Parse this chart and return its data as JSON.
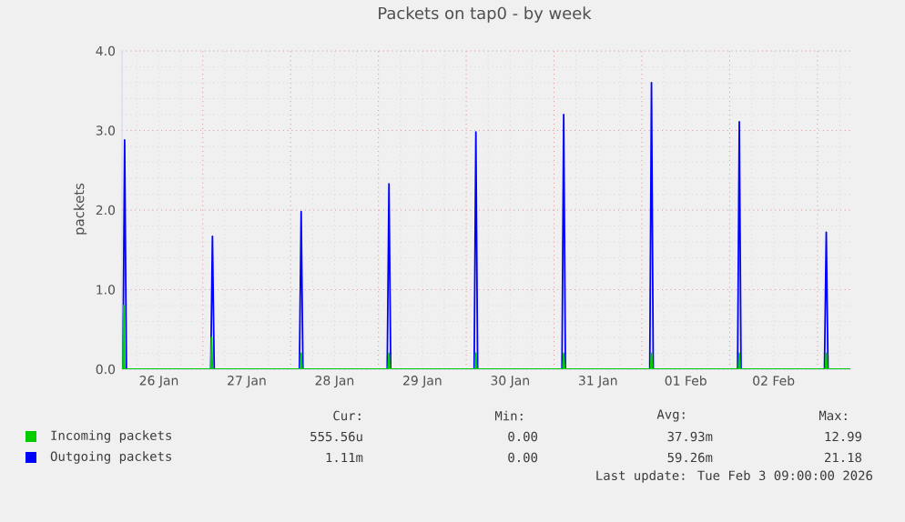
{
  "chart_data": {
    "type": "line",
    "title": "Packets on tap0 - by week",
    "ylabel": "packets",
    "xlim": [
      "2026-01-26T01:55",
      "2026-02-03T09:00"
    ],
    "ylim": [
      0,
      4
    ],
    "xticks": [
      {
        "value": "2026-01-26T12:00",
        "label": "26 Jan"
      },
      {
        "value": "2026-01-27T12:00",
        "label": "27 Jan"
      },
      {
        "value": "2026-01-28T12:00",
        "label": "28 Jan"
      },
      {
        "value": "2026-01-29T12:00",
        "label": "29 Jan"
      },
      {
        "value": "2026-01-30T12:00",
        "label": "30 Jan"
      },
      {
        "value": "2026-01-31T12:00",
        "label": "31 Jan"
      },
      {
        "value": "2026-02-01T12:00",
        "label": "01 Feb"
      },
      {
        "value": "2026-02-02T12:00",
        "label": "02 Feb"
      }
    ],
    "yticks": [
      {
        "value": 0,
        "label": "0.0"
      },
      {
        "value": 1,
        "label": "1.0"
      },
      {
        "value": 2,
        "label": "2.0"
      },
      {
        "value": 3,
        "label": "3.0"
      },
      {
        "value": 4,
        "label": "4.0"
      }
    ],
    "grid": true,
    "legend": "bottom",
    "marker": "none",
    "line_style": "solid",
    "series": [
      {
        "name": "Incoming packets",
        "color": "#00cc00",
        "x": [
          "2026-01-26T01:55",
          "2026-01-26T02:10",
          "2026-01-26T02:24",
          "2026-01-26T02:38",
          "2026-01-27T02:10",
          "2026-01-27T02:24",
          "2026-01-27T02:38",
          "2026-01-28T02:38",
          "2026-01-28T02:53",
          "2026-01-28T03:07",
          "2026-01-29T02:38",
          "2026-01-29T02:53",
          "2026-01-29T03:07",
          "2026-01-30T02:24",
          "2026-01-30T02:38",
          "2026-01-30T02:53",
          "2026-01-31T02:24",
          "2026-01-31T02:38",
          "2026-01-31T02:53",
          "2026-02-01T02:24",
          "2026-02-01T02:38",
          "2026-02-01T02:53",
          "2026-02-02T02:24",
          "2026-02-02T02:38",
          "2026-02-02T02:53",
          "2026-02-03T02:10",
          "2026-02-03T02:24",
          "2026-02-03T02:38",
          "2026-02-03T09:00"
        ],
        "values": [
          0,
          0,
          0.8,
          0,
          0,
          0.4,
          0,
          0,
          0.2,
          0,
          0,
          0.2,
          0,
          0,
          0.2,
          0,
          0,
          0.2,
          0,
          0,
          0.2,
          0,
          0,
          0.2,
          0,
          0,
          0.2,
          0,
          0
        ]
      },
      {
        "name": "Outgoing packets",
        "color": "#0000ff",
        "x": [
          "2026-01-26T01:55",
          "2026-01-26T02:10",
          "2026-01-26T02:38",
          "2026-01-26T03:07",
          "2026-01-27T02:10",
          "2026-01-27T02:38",
          "2026-01-27T03:07",
          "2026-01-28T02:24",
          "2026-01-28T02:53",
          "2026-01-28T03:22",
          "2026-01-29T02:24",
          "2026-01-29T02:53",
          "2026-01-29T03:22",
          "2026-01-30T02:10",
          "2026-01-30T02:38",
          "2026-01-30T03:07",
          "2026-01-31T02:10",
          "2026-01-31T02:38",
          "2026-01-31T03:07",
          "2026-02-01T02:10",
          "2026-02-01T02:38",
          "2026-02-01T03:07",
          "2026-02-02T02:10",
          "2026-02-02T02:38",
          "2026-02-02T03:07",
          "2026-02-03T01:55",
          "2026-02-03T02:24",
          "2026-02-03T02:53",
          "2026-02-03T09:00"
        ],
        "values": [
          0,
          0,
          2.88,
          0,
          0,
          1.67,
          0,
          0,
          1.98,
          0,
          0,
          2.33,
          0,
          0,
          2.98,
          0,
          0,
          3.2,
          0,
          0,
          3.6,
          0,
          0,
          3.11,
          0,
          0,
          1.72,
          0,
          0
        ]
      }
    ],
    "annotations": [
      "Cur:",
      "Min:",
      "Avg:",
      "Max:",
      "555.56u",
      "0.00",
      "37.93m",
      "12.99",
      "1.11m",
      "0.00",
      "59.26m",
      "21.18",
      "Last update: Tue Feb  3 09:00:00 2026"
    ]
  }
}
